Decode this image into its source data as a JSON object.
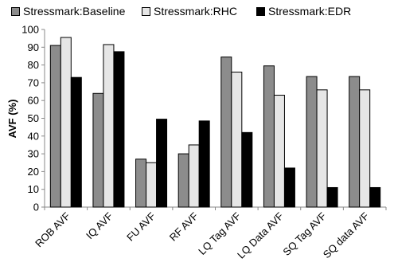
{
  "chart_data": {
    "type": "bar",
    "categories": [
      "ROB AVF",
      "IQ AVF",
      "FU AVF",
      "RF AVF",
      "LQ Tag AVF",
      "LQ Data AVF",
      "SQ Tag AVF",
      "SQ data AVF"
    ],
    "series": [
      {
        "name": "Stressmark:Baseline",
        "color": "#8c8c8c",
        "values": [
          91,
          64,
          27,
          30,
          84.5,
          79.5,
          73.5,
          73.5
        ]
      },
      {
        "name": "Stressmark:RHC",
        "color": "#e6e6e6",
        "values": [
          95.5,
          91.5,
          25,
          35,
          76,
          63,
          66,
          66
        ]
      },
      {
        "name": "Stressmark:EDR",
        "color": "#000000",
        "values": [
          73,
          87.5,
          49.5,
          48.5,
          42,
          22,
          11,
          11
        ]
      }
    ],
    "ylabel": "AVF (%)",
    "xlabel": "",
    "ylim": [
      0,
      100
    ],
    "yticks": [
      0,
      10,
      20,
      30,
      40,
      50,
      60,
      70,
      80,
      90,
      100
    ],
    "legend_position": "top",
    "grid": false
  }
}
